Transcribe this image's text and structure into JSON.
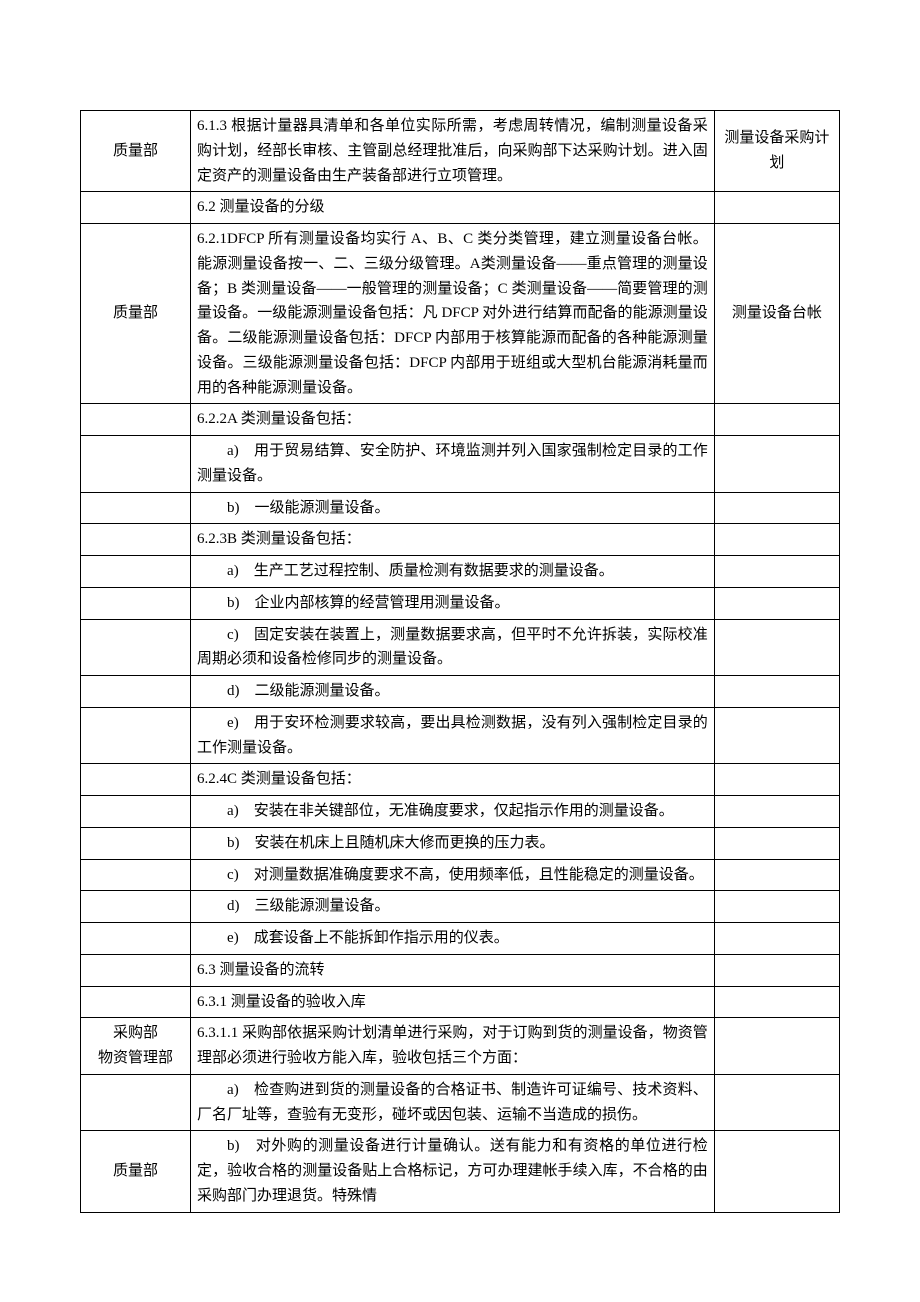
{
  "table": {
    "rows": [
      {
        "col1": "质量部",
        "col2_paragraphs": [
          "6.1.3 根据计量器具清单和各单位实际所需，考虑周转情况，编制测量设备采购计划，经部长审核、主管副总经理批准后，向采购部下达采购计划。进入固定资产的测量设备由生产装备部进行立项管理。"
        ],
        "col3": "测量设备采购计划",
        "col1_class": "center",
        "col2_class": "justify",
        "col3_class": "center"
      },
      {
        "col1": "",
        "col2_paragraphs": [
          "6.2 测量设备的分级"
        ],
        "col3": "",
        "col1_class": "",
        "col2_class": "",
        "col3_class": ""
      },
      {
        "col1": "质量部",
        "col2_paragraphs": [
          "6.2.1DFCP 所有测量设备均实行 A、B、C 类分类管理，建立测量设备台帐。能源测量设备按一、二、三级分级管理。A类测量设备——重点管理的测量设备；B 类测量设备——一般管理的测量设备；C 类测量设备——简要管理的测量设备。一级能源测量设备包括：凡 DFCP 对外进行结算而配备的能源测量设备。二级能源测量设备包括：DFCP 内部用于核算能源而配备的各种能源测量设备。三级能源测量设备包括：DFCP 内部用于班组或大型机台能源消耗量而用的各种能源测量设备。"
        ],
        "col3": "测量设备台帐",
        "col1_class": "center",
        "col2_class": "justify",
        "col3_class": "center"
      },
      {
        "col1": "",
        "col2_paragraphs": [
          "6.2.2A 类测量设备包括："
        ],
        "col3": "",
        "col1_class": "",
        "col2_class": "",
        "col3_class": ""
      },
      {
        "col1": "",
        "col2_paragraphs": [
          "a)　用于贸易结算、安全防护、环境监测并列入国家强制检定目录的工作测量设备。"
        ],
        "col3": "",
        "col1_class": "",
        "col2_class": "justify indent",
        "col3_class": ""
      },
      {
        "col1": "",
        "col2_paragraphs": [
          "b)　一级能源测量设备。"
        ],
        "col3": "",
        "col1_class": "",
        "col2_class": "indent",
        "col3_class": ""
      },
      {
        "col1": "",
        "col2_paragraphs": [
          "6.2.3B 类测量设备包括："
        ],
        "col3": "",
        "col1_class": "",
        "col2_class": "",
        "col3_class": ""
      },
      {
        "col1": "",
        "col2_paragraphs": [
          "a)　生产工艺过程控制、质量检测有数据要求的测量设备。"
        ],
        "col3": "",
        "col1_class": "",
        "col2_class": "justify indent",
        "col3_class": ""
      },
      {
        "col1": "",
        "col2_paragraphs": [
          "b)　企业内部核算的经营管理用测量设备。"
        ],
        "col3": "",
        "col1_class": "",
        "col2_class": "indent",
        "col3_class": ""
      },
      {
        "col1": "",
        "col2_paragraphs": [
          "c)　固定安装在装置上，测量数据要求高，但平时不允许拆装，实际校准周期必须和设备检修同步的测量设备。"
        ],
        "col3": "",
        "col1_class": "",
        "col2_class": "justify indent",
        "col3_class": ""
      },
      {
        "col1": "",
        "col2_paragraphs": [
          "d)　二级能源测量设备。"
        ],
        "col3": "",
        "col1_class": "",
        "col2_class": "indent",
        "col3_class": ""
      },
      {
        "col1": "",
        "col2_paragraphs": [
          "e)　用于安环检测要求较高，要出具检测数据，没有列入强制检定目录的工作测量设备。"
        ],
        "col3": "",
        "col1_class": "",
        "col2_class": "justify indent",
        "col3_class": ""
      },
      {
        "col1": "",
        "col2_paragraphs": [
          "6.2.4C 类测量设备包括："
        ],
        "col3": "",
        "col1_class": "",
        "col2_class": "",
        "col3_class": ""
      },
      {
        "col1": "",
        "col2_paragraphs": [
          "a)　安装在非关键部位，无准确度要求，仅起指示作用的测量设备。"
        ],
        "col3": "",
        "col1_class": "",
        "col2_class": "justify indent",
        "col3_class": ""
      },
      {
        "col1": "",
        "col2_paragraphs": [
          "b)　安装在机床上且随机床大修而更换的压力表。"
        ],
        "col3": "",
        "col1_class": "",
        "col2_class": "indent",
        "col3_class": ""
      },
      {
        "col1": "",
        "col2_paragraphs": [
          "c)　对测量数据准确度要求不高，使用频率低，且性能稳定的测量设备。"
        ],
        "col3": "",
        "col1_class": "",
        "col2_class": "justify indent",
        "col3_class": ""
      },
      {
        "col1": "",
        "col2_paragraphs": [
          "d)　三级能源测量设备。"
        ],
        "col3": "",
        "col1_class": "",
        "col2_class": "indent",
        "col3_class": ""
      },
      {
        "col1": "",
        "col2_paragraphs": [
          "e)　成套设备上不能拆卸作指示用的仪表。"
        ],
        "col3": "",
        "col1_class": "",
        "col2_class": "indent",
        "col3_class": ""
      },
      {
        "col1": "",
        "col2_paragraphs": [
          "6.3 测量设备的流转"
        ],
        "col3": "",
        "col1_class": "",
        "col2_class": "",
        "col3_class": ""
      },
      {
        "col1": "",
        "col2_paragraphs": [
          "6.3.1 测量设备的验收入库"
        ],
        "col3": "",
        "col1_class": "",
        "col2_class": "",
        "col3_class": ""
      },
      {
        "col1": "采购部\n物资管理部",
        "col2_paragraphs": [
          "6.3.1.1 采购部依据采购计划清单进行采购，对于订购到货的测量设备，物资管理部必须进行验收方能入库，验收包括三个方面："
        ],
        "col3": "",
        "col1_class": "center",
        "col2_class": "justify",
        "col3_class": ""
      },
      {
        "col1": "",
        "col2_paragraphs": [
          "a)　检查购进到货的测量设备的合格证书、制造许可证编号、技术资料、厂名厂址等，查验有无变形，碰坏或因包装、运输不当造成的损伤。"
        ],
        "col3": "",
        "col1_class": "",
        "col2_class": "justify indent",
        "col3_class": ""
      },
      {
        "col1": "质量部",
        "col2_paragraphs": [
          "b)　对外购的测量设备进行计量确认。送有能力和有资格的单位进行检定，验收合格的测量设备贴上合格标记，方可办理建帐手续入库，不合格的由采购部门办理退货。特殊情"
        ],
        "col3": "",
        "col1_class": "center",
        "col2_class": "justify indent",
        "col3_class": ""
      }
    ]
  }
}
